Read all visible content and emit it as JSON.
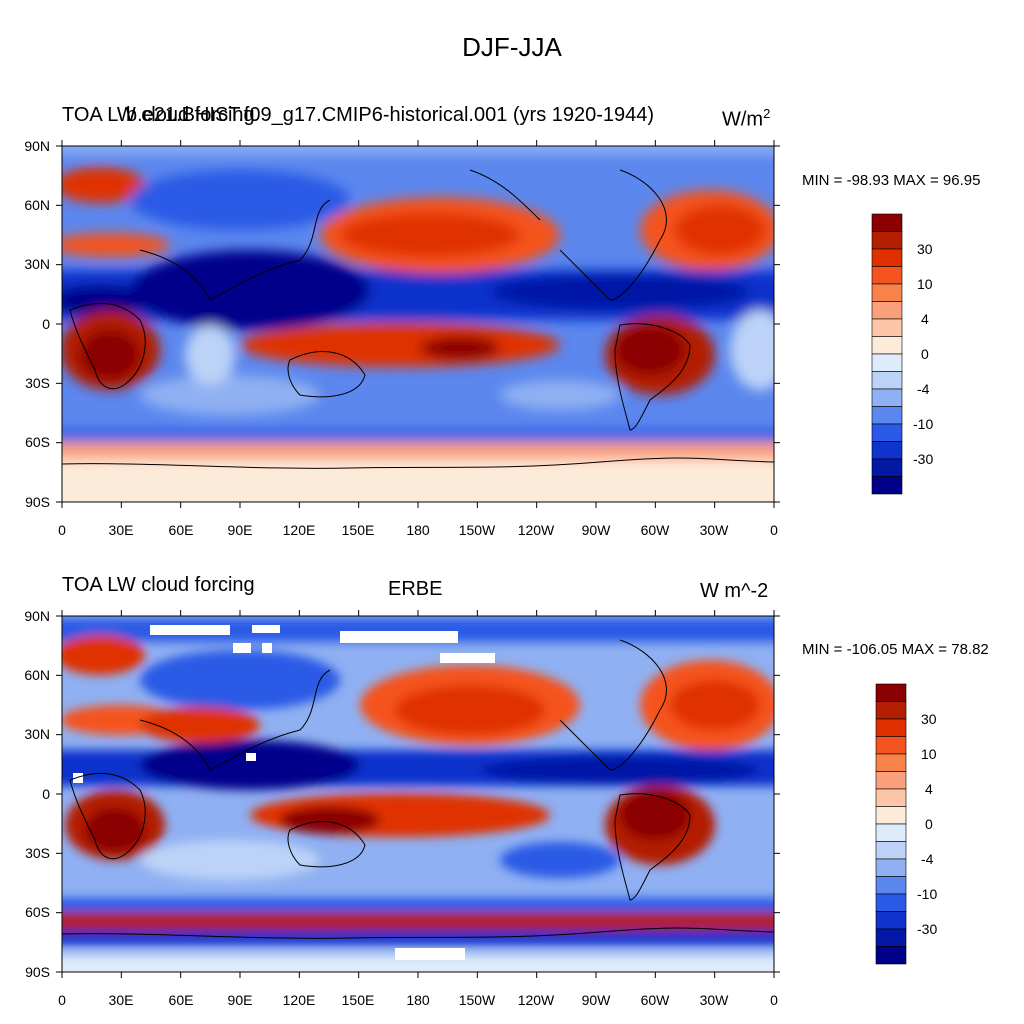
{
  "figure_title": "DJF-JJA",
  "panels": [
    {
      "left_title": "TOA LW cloud forcing",
      "center_title": "b.e21.BHIST.f09_g17.CMIP6-historical.001 (yrs 1920-1944)",
      "units": "W/m",
      "units_sup": "2",
      "stats": "MIN = -98.93 MAX =  96.95"
    },
    {
      "left_title": "TOA LW cloud forcing",
      "center_title": "ERBE",
      "units": "W m^-2",
      "stats": "MIN = -106.05 MAX =  78.82"
    }
  ],
  "axes": {
    "lat_ticks": [
      "90N",
      "60N",
      "30N",
      "0",
      "30S",
      "60S",
      "90S"
    ],
    "lon_ticks": [
      "0",
      "30E",
      "60E",
      "90E",
      "120E",
      "150E",
      "180",
      "150W",
      "120W",
      "90W",
      "60W",
      "30W",
      "0"
    ]
  },
  "colorbar": {
    "labels": [
      "30",
      "10",
      "4",
      "0",
      "-4",
      "-10",
      "-30"
    ],
    "colors": [
      "#8b0000",
      "#b31f00",
      "#e03000",
      "#f5531f",
      "#f7834a",
      "#fba07c",
      "#fdc6a8",
      "#fdebd9",
      "#deebfb",
      "#bcd3f7",
      "#8fb0f2",
      "#5b87ee",
      "#2b5ae6",
      "#0f33cc",
      "#0418a6",
      "#00008b"
    ]
  },
  "chart_data": {
    "type": "heatmap",
    "panels": [
      {
        "title": "b.e21.BHIST.f09_g17.CMIP6-historical.001 (yrs 1920-1944)",
        "variable": "TOA LW cloud forcing",
        "units": "W/m2",
        "min": -98.93,
        "max": 96.95,
        "xlim": [
          0,
          360
        ],
        "ylim": [
          -90,
          90
        ]
      },
      {
        "title": "ERBE",
        "variable": "TOA LW cloud forcing",
        "units": "W m^-2",
        "min": -106.05,
        "max": 78.82,
        "xlim": [
          0,
          360
        ],
        "ylim": [
          -90,
          90
        ]
      }
    ]
  }
}
